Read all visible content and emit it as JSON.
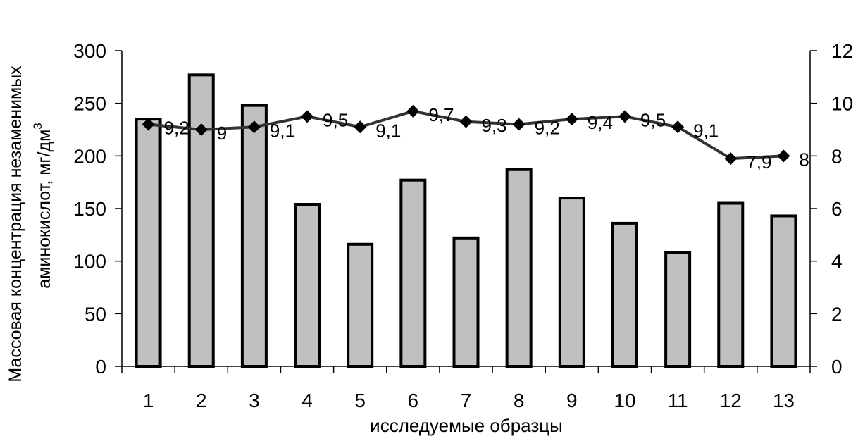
{
  "chart_data": {
    "type": "bar",
    "categories": [
      "1",
      "2",
      "3",
      "4",
      "5",
      "6",
      "7",
      "8",
      "9",
      "10",
      "11",
      "12",
      "13"
    ],
    "xlabel": "исследуемые образцы",
    "ylabel_lines": [
      "Массовая концентрация незаменимых",
      "аминокислот, мг/дм"
    ],
    "ylabel_superscript": "3",
    "ylim": [
      0,
      300
    ],
    "y_ticks": [
      "0",
      "50",
      "100",
      "150",
      "200",
      "250",
      "300"
    ],
    "y2lim": [
      0,
      12
    ],
    "y2_ticks": [
      "0",
      "2",
      "4",
      "6",
      "8",
      "10",
      "12"
    ],
    "grid": false,
    "legend": "none",
    "series": [
      {
        "type": "bar",
        "axis": "left",
        "values": [
          235,
          277,
          248,
          154,
          116,
          177,
          122,
          187,
          160,
          136,
          108,
          155,
          143
        ]
      },
      {
        "type": "line",
        "axis": "right",
        "values": [
          9.2,
          9.0,
          9.1,
          9.5,
          9.1,
          9.7,
          9.3,
          9.2,
          9.4,
          9.5,
          9.1,
          7.9,
          8.0
        ],
        "labels": [
          "9,2",
          "9",
          "9,1",
          "9,5",
          "9,1",
          "9,7",
          "9,3",
          "9,2",
          "9,4",
          "9,5",
          "9,1",
          "7,9",
          "8"
        ]
      }
    ],
    "colors": {
      "bar_fill": "#c0c0c0",
      "bar_stroke": "#000000",
      "line": "#333333",
      "marker": "#000000"
    }
  }
}
